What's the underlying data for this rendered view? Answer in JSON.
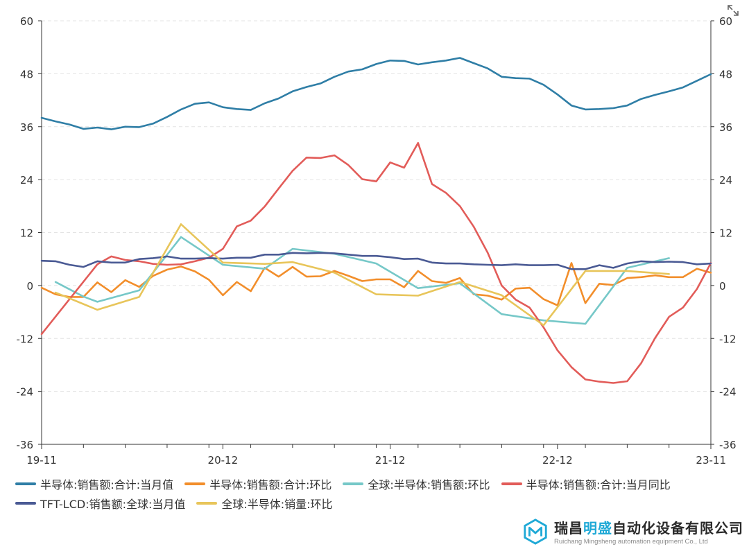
{
  "expand_icon": "expand-icon",
  "chart_data": {
    "type": "line",
    "ylim": [
      -36,
      60
    ],
    "yticks": [
      60,
      48,
      36,
      24,
      12,
      0,
      -12,
      -24,
      -36
    ],
    "y2lim": [
      -36,
      60
    ],
    "grid": "horizontal-dashed",
    "legend_position": "bottom-left",
    "x_tick_labels": [
      "19-11",
      "20-12",
      "21-12",
      "22-12",
      "23-11"
    ],
    "x": [
      "19-11",
      "19-12",
      "20-01",
      "20-02",
      "20-03",
      "20-04",
      "20-05",
      "20-06",
      "20-07",
      "20-08",
      "20-09",
      "20-10",
      "20-11",
      "20-12",
      "21-01",
      "21-02",
      "21-03",
      "21-04",
      "21-05",
      "21-06",
      "21-07",
      "21-08",
      "21-09",
      "21-10",
      "21-11",
      "21-12",
      "22-01",
      "22-02",
      "22-03",
      "22-04",
      "22-05",
      "22-06",
      "22-07",
      "22-08",
      "22-09",
      "22-10",
      "22-11",
      "22-12",
      "23-01",
      "23-02",
      "23-03",
      "23-04",
      "23-05",
      "23-06",
      "23-07",
      "23-08",
      "23-09",
      "23-10",
      "23-11"
    ],
    "series": [
      {
        "name": "半导体:销售额:合计:当月值",
        "color": "#2f7ea6",
        "values": [
          38.0,
          37.2,
          36.5,
          35.5,
          35.8,
          35.4,
          36.0,
          35.9,
          36.7,
          38.2,
          39.9,
          41.2,
          41.5,
          40.4,
          40.0,
          39.8,
          41.3,
          42.4,
          44.0,
          45.0,
          45.8,
          47.3,
          48.5,
          49.0,
          50.2,
          51.0,
          50.9,
          50.1,
          50.6,
          51.0,
          51.6,
          50.4,
          49.2,
          47.3,
          47.0,
          46.9,
          45.5,
          43.3,
          40.8,
          39.9,
          40.0,
          40.2,
          40.8,
          42.3,
          43.2,
          44.0,
          44.9,
          46.4,
          47.9
        ]
      },
      {
        "name": "半导体:销售额:合计:环比",
        "color": "#f28e2b",
        "values": [
          -0.5,
          -2.0,
          -2.6,
          -2.6,
          0.7,
          -1.5,
          1.2,
          -0.3,
          2.2,
          3.6,
          4.3,
          3.2,
          1.3,
          -2.2,
          0.8,
          -1.3,
          4.0,
          2.0,
          4.2,
          2.0,
          2.1,
          3.3,
          2.2,
          1.0,
          1.4,
          1.4,
          -0.4,
          3.3,
          1.0,
          0.6,
          1.7,
          -2.0,
          -2.3,
          -3.2,
          -0.7,
          -0.5,
          -3.1,
          -4.5,
          5.1,
          -4.0,
          0.4,
          0.1,
          1.7,
          1.9,
          2.3,
          1.9,
          1.9,
          3.8,
          2.9
        ]
      },
      {
        "name": "全球:半导体:销售额:环比",
        "color": "#76c8c8",
        "values": [
          null,
          0.8,
          null,
          -2.5,
          -3.7,
          null,
          null,
          -1.1,
          null,
          null,
          11.0,
          null,
          null,
          4.7,
          null,
          null,
          3.8,
          null,
          8.3,
          null,
          null,
          7.2,
          null,
          null,
          5.0,
          null,
          null,
          -0.6,
          null,
          null,
          0.5,
          null,
          null,
          -6.5,
          null,
          null,
          -7.9,
          null,
          null,
          -8.7,
          null,
          null,
          4.0,
          null,
          null,
          6.2,
          null,
          null,
          null
        ]
      },
      {
        "name": "半导体:销售额:合计:当月同比",
        "color": "#e25c59",
        "values": [
          -11.0,
          null,
          null,
          null,
          4.8,
          6.6,
          5.8,
          5.5,
          4.9,
          4.7,
          4.8,
          5.5,
          6.3,
          8.3,
          13.4,
          14.7,
          17.9,
          22.0,
          26.0,
          29.0,
          28.9,
          29.5,
          27.3,
          24.1,
          23.6,
          27.9,
          26.7,
          32.3,
          23.0,
          21.0,
          18.0,
          13.3,
          7.4,
          0.0,
          -3.2,
          -5.0,
          -9.5,
          -14.7,
          -18.5,
          -21.3,
          -21.8,
          -22.1,
          -21.7,
          -17.6,
          -11.9,
          -7.1,
          -5.0,
          -0.8,
          5.1
        ]
      },
      {
        "name": "TFT-LCD:销售额:全球:当月值",
        "color": "#4a5a94",
        "values": [
          5.6,
          5.5,
          4.7,
          4.2,
          5.5,
          5.2,
          5.2,
          6.0,
          6.2,
          6.6,
          6.1,
          6.1,
          6.2,
          6.1,
          6.3,
          6.3,
          7.0,
          7.0,
          7.4,
          7.3,
          7.4,
          7.3,
          7.0,
          6.7,
          6.7,
          6.4,
          6.0,
          6.1,
          5.2,
          5.0,
          5.0,
          4.8,
          4.7,
          4.6,
          4.8,
          4.6,
          4.6,
          4.7,
          3.7,
          3.7,
          4.6,
          4.0,
          5.0,
          5.5,
          5.3,
          5.4,
          5.3,
          4.8,
          5.0
        ]
      },
      {
        "name": "全球:半导体:销量:环比",
        "color": "#e8c55a",
        "values": [
          null,
          -1.6,
          null,
          null,
          -5.5,
          null,
          null,
          -2.6,
          null,
          null,
          13.9,
          null,
          null,
          5.2,
          null,
          null,
          4.9,
          null,
          5.3,
          null,
          null,
          2.9,
          null,
          null,
          -2.0,
          null,
          null,
          -2.3,
          null,
          null,
          0.8,
          null,
          null,
          -2.2,
          null,
          null,
          -9.0,
          null,
          null,
          3.3,
          null,
          null,
          3.3,
          null,
          null,
          2.6,
          null,
          null,
          null
        ]
      }
    ]
  },
  "legend": [
    [
      "半导体:销售额:合计:当月值",
      "半导体:销售额:合计:环比",
      "全球:半导体:销售额:环比",
      "半导体:销售额:合计:当月同比"
    ],
    [
      "TFT-LCD:销售额:全球:当月值",
      "全球:半导体:销量:环比"
    ]
  ],
  "brand": {
    "name_part1": "瑞昌",
    "name_highlight": "明盛",
    "name_part2": "自动化设备有限公司",
    "subtitle": "Ruichang Mingsheng automation equipment Co., Ltd",
    "logo_icon": "hexagon-m-logo-icon"
  }
}
